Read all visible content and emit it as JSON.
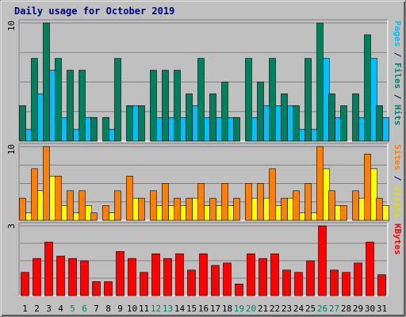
{
  "chart_data": {
    "type": "bar",
    "title": "Daily usage for October 2019",
    "categories": [
      "1",
      "2",
      "3",
      "4",
      "5",
      "6",
      "7",
      "8",
      "9",
      "10",
      "11",
      "12",
      "13",
      "14",
      "15",
      "16",
      "17",
      "18",
      "19",
      "20",
      "21",
      "22",
      "23",
      "24",
      "25",
      "26",
      "27",
      "28",
      "29",
      "30",
      "31"
    ],
    "weekend_days": [
      "5",
      "6",
      "12",
      "13",
      "19",
      "20",
      "26",
      "27"
    ],
    "panels": [
      {
        "name": "hits-files-pages",
        "ymax_label": "10",
        "ymax": 10,
        "side_label_parts": [
          {
            "text": "Pages",
            "color": "#00c0ff"
          },
          {
            "text": " / ",
            "color": "#000080"
          },
          {
            "text": "Files",
            "color": "#008080"
          },
          {
            "text": " / ",
            "color": "#000080"
          },
          {
            "text": "Hits",
            "color": "#00806c"
          }
        ],
        "series": [
          {
            "name": "Hits",
            "color": "#00805c",
            "values": [
              3,
              7,
              10,
              7,
              6,
              6,
              2,
              2,
              7,
              3,
              3,
              6,
              6,
              6,
              4,
              7,
              4,
              5,
              2,
              7,
              5,
              7,
              4,
              3,
              7,
              10,
              4,
              3,
              4,
              9,
              3
            ]
          },
          {
            "name": "Files",
            "color": "#00c0ff",
            "values": [
              1,
              4,
              6,
              2,
              1,
              2,
              0,
              1,
              0,
              3,
              0,
              2,
              2,
              2,
              3,
              2,
              2,
              2,
              0,
              2,
              3,
              3,
              3,
              1,
              1,
              7,
              2,
              0,
              2,
              7,
              2
            ]
          }
        ]
      },
      {
        "name": "visits-sites",
        "ymax_label": "10",
        "ymax": 10,
        "side_label_parts": [
          {
            "text": "Sites",
            "color": "#ff8000"
          },
          {
            "text": " / ",
            "color": "#000080"
          },
          {
            "text": "Visits",
            "color": "#e0e000"
          }
        ],
        "series": [
          {
            "name": "Visits",
            "color": "#ff8000",
            "values": [
              3,
              7,
              10,
              6,
              4,
              4,
              1,
              2,
              4,
              6,
              3,
              4,
              5,
              3,
              3,
              5,
              3,
              5,
              3,
              5,
              5,
              7,
              3,
              4,
              5,
              10,
              4,
              2,
              4,
              9,
              3
            ]
          },
          {
            "name": "Sites",
            "color": "#ffff00",
            "values": [
              1,
              4,
              6,
              2,
              1,
              2,
              0,
              1,
              0,
              3,
              0,
              2,
              2,
              2,
              3,
              2,
              2,
              2,
              0,
              3,
              3,
              2,
              3,
              1,
              1,
              7,
              2,
              0,
              3,
              7,
              2
            ]
          }
        ]
      },
      {
        "name": "kbytes",
        "ymax_label": "3",
        "ymax": 3,
        "side_label_parts": [
          {
            "text": "KBytes",
            "color": "#ff0000"
          }
        ],
        "series": [
          {
            "name": "KBytes",
            "color": "#ff0000",
            "values": [
              1.0,
              1.6,
              2.3,
              1.7,
              1.6,
              1.5,
              0.6,
              0.6,
              1.9,
              1.6,
              1.0,
              1.8,
              1.6,
              1.8,
              1.1,
              1.8,
              1.3,
              1.4,
              0.5,
              1.8,
              1.6,
              1.8,
              1.1,
              1.0,
              1.5,
              3.0,
              1.1,
              1.0,
              1.4,
              2.3,
              0.9
            ]
          }
        ]
      }
    ]
  }
}
